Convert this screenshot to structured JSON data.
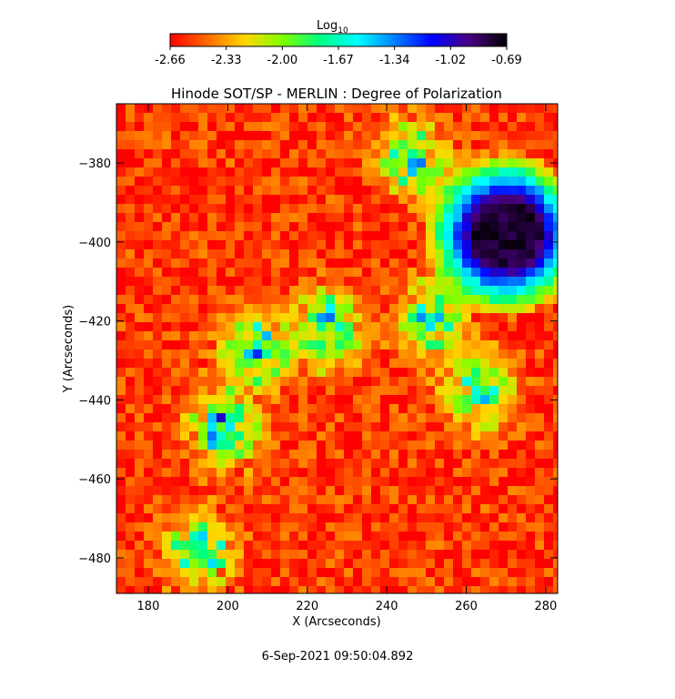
{
  "chart_data": {
    "type": "heatmap",
    "title": "Hinode SOT/SP - MERLIN : Degree of Polarization",
    "xlabel": "X (Arcseconds)",
    "ylabel": "Y (Arcseconds)",
    "xlim": [
      172,
      283
    ],
    "ylim": [
      -489,
      -365
    ],
    "xticks": [
      180,
      200,
      220,
      240,
      260,
      280
    ],
    "yticks": [
      -380,
      -400,
      -420,
      -440,
      -460,
      -480
    ],
    "colorbar": {
      "label_base": "Log",
      "label_sub": "10",
      "min": -2.66,
      "max": -0.69,
      "ticks": [
        "-2.66",
        "-2.33",
        "-2.00",
        "-1.67",
        "-1.34",
        "-1.02",
        "-0.69"
      ],
      "colormap": [
        "#ff0000",
        "#ff6a00",
        "#ffd700",
        "#7fff00",
        "#00ff7f",
        "#00ffff",
        "#0080ff",
        "#0000ff",
        "#4b0082",
        "#000000"
      ]
    },
    "features": {
      "background_level": -2.55,
      "sunspot": {
        "x": 270,
        "y": -398,
        "peak": -0.78
      },
      "network_regions": [
        {
          "x": 207,
          "y": -428,
          "level": -1.4
        },
        {
          "x": 225,
          "y": -422,
          "level": -1.5
        },
        {
          "x": 199,
          "y": -447,
          "level": -1.45
        },
        {
          "x": 251,
          "y": -420,
          "level": -1.6
        },
        {
          "x": 263,
          "y": -438,
          "level": -1.55
        },
        {
          "x": 193,
          "y": -478,
          "level": -1.6
        },
        {
          "x": 247,
          "y": -379,
          "level": -1.6
        }
      ]
    }
  },
  "footer": {
    "date": "6-Sep-2021 09:50:04.892"
  }
}
